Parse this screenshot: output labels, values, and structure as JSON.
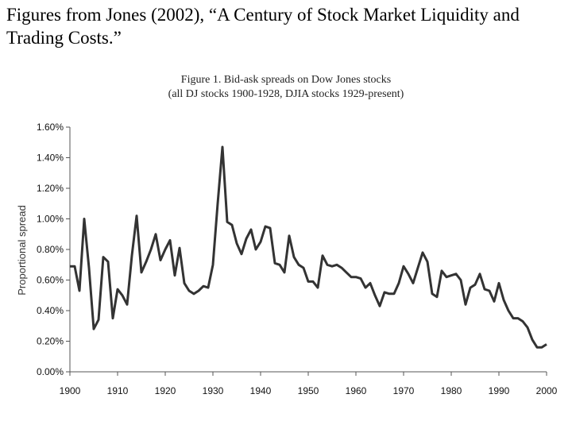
{
  "heading": {
    "line1": "Figures from Jones (2002), “A Century of Stock Market Liquidity and",
    "line2": "Trading Costs.”"
  },
  "chart_data": {
    "type": "line",
    "title": "Figure 1.  Bid-ask spreads on Dow Jones stocks",
    "subtitle": "(all DJ stocks 1900-1928, DJIA stocks 1929-present)",
    "xlabel": "",
    "ylabel": "Proportional spread",
    "xlim": [
      1900,
      2000
    ],
    "ylim": [
      0,
      1.6
    ],
    "x_ticks": [
      "1900",
      "1910",
      "1920",
      "1930",
      "1940",
      "1950",
      "1960",
      "1970",
      "1980",
      "1990",
      "2000"
    ],
    "y_ticks": [
      "0.00%",
      "0.20%",
      "0.40%",
      "0.60%",
      "0.80%",
      "1.00%",
      "1.20%",
      "1.40%",
      "1.60%"
    ],
    "grid": false,
    "series": [
      {
        "color": "#333333",
        "x": [
          1900,
          1901,
          1902,
          1903,
          1904,
          1905,
          1906,
          1907,
          1908,
          1909,
          1910,
          1911,
          1912,
          1913,
          1914,
          1915,
          1916,
          1917,
          1918,
          1919,
          1920,
          1921,
          1922,
          1923,
          1924,
          1925,
          1926,
          1927,
          1928,
          1929,
          1930,
          1931,
          1932,
          1933,
          1934,
          1935,
          1936,
          1937,
          1938,
          1939,
          1940,
          1941,
          1942,
          1943,
          1944,
          1945,
          1946,
          1947,
          1948,
          1949,
          1950,
          1951,
          1952,
          1953,
          1954,
          1955,
          1956,
          1957,
          1958,
          1959,
          1960,
          1961,
          1962,
          1963,
          1964,
          1965,
          1966,
          1967,
          1968,
          1969,
          1970,
          1971,
          1972,
          1973,
          1974,
          1975,
          1976,
          1977,
          1978,
          1979,
          1980,
          1981,
          1982,
          1983,
          1984,
          1985,
          1986,
          1987,
          1988,
          1989,
          1990,
          1991,
          1992,
          1993,
          1994,
          1995,
          1996,
          1997,
          1998,
          1999,
          2000
        ],
        "y": [
          0.69,
          0.69,
          0.53,
          1.0,
          0.68,
          0.28,
          0.34,
          0.75,
          0.72,
          0.35,
          0.54,
          0.5,
          0.44,
          0.76,
          1.02,
          0.65,
          0.72,
          0.8,
          0.9,
          0.73,
          0.8,
          0.86,
          0.63,
          0.81,
          0.58,
          0.53,
          0.51,
          0.53,
          0.56,
          0.55,
          0.7,
          1.1,
          1.47,
          0.98,
          0.96,
          0.84,
          0.77,
          0.87,
          0.93,
          0.8,
          0.85,
          0.95,
          0.94,
          0.71,
          0.7,
          0.65,
          0.89,
          0.75,
          0.7,
          0.68,
          0.59,
          0.59,
          0.55,
          0.76,
          0.7,
          0.69,
          0.7,
          0.68,
          0.65,
          0.62,
          0.62,
          0.61,
          0.55,
          0.58,
          0.5,
          0.43,
          0.52,
          0.51,
          0.51,
          0.58,
          0.69,
          0.64,
          0.58,
          0.68,
          0.78,
          0.72,
          0.51,
          0.49,
          0.66,
          0.62,
          0.63,
          0.64,
          0.6,
          0.44,
          0.55,
          0.57,
          0.64,
          0.54,
          0.53,
          0.46,
          0.58,
          0.47,
          0.4,
          0.35,
          0.35,
          0.33,
          0.29,
          0.21,
          0.16,
          0.16,
          0.18
        ]
      }
    ]
  }
}
